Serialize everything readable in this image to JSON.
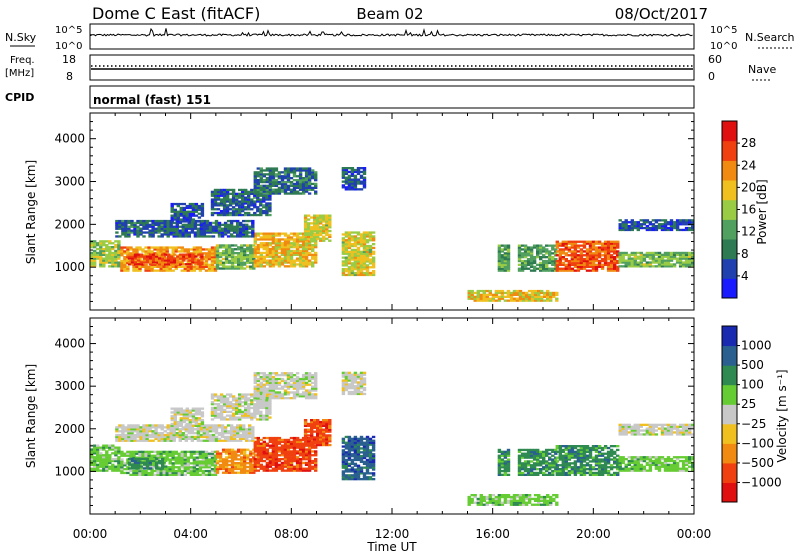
{
  "header": {
    "title": "Dome C East (fitACF)",
    "beam": "Beam 02",
    "date": "08/Oct/2017"
  },
  "strips": {
    "nsky": {
      "label": "N.Sky",
      "right_label": "N.Search",
      "left_ticks": [
        "10^5",
        "10^0"
      ],
      "right_ticks": [
        "10^5",
        "10^0"
      ]
    },
    "freq": {
      "label_line1": "Freq.",
      "label_line2": "[MHz]",
      "right_label": "Nave",
      "left_ticks": [
        "18",
        "8"
      ],
      "right_ticks": [
        "60",
        "0"
      ]
    },
    "cpid": {
      "label": "CPID",
      "text": "normal (fast) 151"
    }
  },
  "colors": {
    "axis": "#000000",
    "power_scale": [
      "#1a1aff",
      "#2040b0",
      "#2e7a52",
      "#52a060",
      "#99cc44",
      "#f0c020",
      "#f08a10",
      "#f04010",
      "#e01010"
    ],
    "velocity_scale": [
      "#e01010",
      "#f04010",
      "#f08a10",
      "#f0c020",
      "#c8c8c8",
      "#66cc33",
      "#2e8a50",
      "#2a6090",
      "#1a2ab0"
    ]
  },
  "chart_data": [
    {
      "type": "heatmap",
      "title": "",
      "xlabel": "",
      "ylabel": "Slant Range [km]",
      "xlim": [
        "00:00",
        "24:00"
      ],
      "ylim": [
        0,
        4600
      ],
      "yticks": [
        "1000",
        "2000",
        "3000",
        "4000"
      ],
      "xticks": [
        "00:00",
        "04:00",
        "08:00",
        "12:00",
        "16:00",
        "20:00",
        "00:00"
      ],
      "colorbar": {
        "label": "Power [dB]",
        "ticks": [
          "4",
          "8",
          "12",
          "16",
          "20",
          "24",
          "28"
        ],
        "range": [
          0,
          32
        ]
      },
      "regions": [
        {
          "t0": 0.0,
          "t1": 1.2,
          "r0": 1000,
          "r1": 1600,
          "value": 16
        },
        {
          "t0": 1.2,
          "t1": 5.0,
          "r0": 900,
          "r1": 1450,
          "value": 22
        },
        {
          "t0": 1.5,
          "t1": 4.5,
          "r0": 1050,
          "r1": 1300,
          "value": 27
        },
        {
          "t0": 5.0,
          "t1": 6.5,
          "r0": 950,
          "r1": 1500,
          "value": 14
        },
        {
          "t0": 6.5,
          "t1": 9.0,
          "r0": 1000,
          "r1": 1800,
          "value": 20
        },
        {
          "t0": 8.5,
          "t1": 9.5,
          "r0": 1600,
          "r1": 2200,
          "value": 18
        },
        {
          "t0": 1.0,
          "t1": 6.5,
          "r0": 1700,
          "r1": 2100,
          "value": 7
        },
        {
          "t0": 3.2,
          "t1": 4.5,
          "r0": 2050,
          "r1": 2500,
          "value": 6
        },
        {
          "t0": 4.8,
          "t1": 7.2,
          "r0": 2200,
          "r1": 2800,
          "value": 7
        },
        {
          "t0": 6.5,
          "t1": 9.0,
          "r0": 2700,
          "r1": 3300,
          "value": 8
        },
        {
          "t0": 10.0,
          "t1": 10.9,
          "r0": 2800,
          "r1": 3300,
          "value": 6
        },
        {
          "t0": 10.0,
          "t1": 11.3,
          "r0": 800,
          "r1": 1800,
          "value": 18
        },
        {
          "t0": 15.0,
          "t1": 18.5,
          "r0": 200,
          "r1": 450,
          "value": 20
        },
        {
          "t0": 16.2,
          "t1": 16.6,
          "r0": 900,
          "r1": 1500,
          "value": 12
        },
        {
          "t0": 17.0,
          "t1": 18.5,
          "r0": 900,
          "r1": 1500,
          "value": 12
        },
        {
          "t0": 18.5,
          "t1": 21.0,
          "r0": 900,
          "r1": 1600,
          "value": 26
        },
        {
          "t0": 21.0,
          "t1": 24.0,
          "r0": 1000,
          "r1": 1350,
          "value": 14
        },
        {
          "t0": 21.0,
          "t1": 24.0,
          "r0": 1850,
          "r1": 2100,
          "value": 6
        }
      ]
    },
    {
      "type": "heatmap",
      "title": "",
      "xlabel": "Time UT",
      "ylabel": "Slant Range [km]",
      "xlim": [
        "00:00",
        "24:00"
      ],
      "ylim": [
        0,
        4600
      ],
      "yticks": [
        "1000",
        "2000",
        "3000",
        "4000"
      ],
      "xticks": [
        "00:00",
        "04:00",
        "08:00",
        "12:00",
        "16:00",
        "20:00",
        "00:00"
      ],
      "colorbar": {
        "label": "Velocity [m s⁻¹]",
        "ticks": [
          "1000",
          "500",
          "100",
          "25",
          "−25",
          "−100",
          "−500",
          "−1000"
        ]
      },
      "regions": [
        {
          "t0": 0.0,
          "t1": 1.2,
          "r0": 1000,
          "r1": 1600,
          "value": "100"
        },
        {
          "t0": 1.2,
          "t1": 5.0,
          "r0": 900,
          "r1": 1450,
          "value": "100"
        },
        {
          "t0": 1.5,
          "t1": 3.0,
          "r0": 1050,
          "r1": 1300,
          "value": "500"
        },
        {
          "t0": 5.0,
          "t1": 6.5,
          "r0": 950,
          "r1": 1500,
          "value": "-100"
        },
        {
          "t0": 6.5,
          "t1": 9.0,
          "r0": 1000,
          "r1": 1800,
          "value": "-500"
        },
        {
          "t0": 8.5,
          "t1": 9.5,
          "r0": 1600,
          "r1": 2200,
          "value": "-500"
        },
        {
          "t0": 1.0,
          "t1": 6.5,
          "r0": 1700,
          "r1": 2100,
          "value": "25"
        },
        {
          "t0": 3.2,
          "t1": 4.5,
          "r0": 2050,
          "r1": 2500,
          "value": "25"
        },
        {
          "t0": 4.8,
          "t1": 7.2,
          "r0": 2200,
          "r1": 2800,
          "value": "25"
        },
        {
          "t0": 6.5,
          "t1": 9.0,
          "r0": 2700,
          "r1": 3300,
          "value": "25"
        },
        {
          "t0": 10.0,
          "t1": 10.9,
          "r0": 2800,
          "r1": 3300,
          "value": "25"
        },
        {
          "t0": 10.0,
          "t1": 11.3,
          "r0": 800,
          "r1": 1800,
          "value": "1000"
        },
        {
          "t0": 15.0,
          "t1": 18.5,
          "r0": 200,
          "r1": 450,
          "value": "100"
        },
        {
          "t0": 16.2,
          "t1": 16.6,
          "r0": 900,
          "r1": 1500,
          "value": "500"
        },
        {
          "t0": 17.0,
          "t1": 18.5,
          "r0": 900,
          "r1": 1500,
          "value": "500"
        },
        {
          "t0": 18.5,
          "t1": 21.0,
          "r0": 900,
          "r1": 1600,
          "value": "500"
        },
        {
          "t0": 21.0,
          "t1": 24.0,
          "r0": 1000,
          "r1": 1350,
          "value": "100"
        },
        {
          "t0": 21.0,
          "t1": 24.0,
          "r0": 1850,
          "r1": 2100,
          "value": "25"
        }
      ]
    }
  ]
}
